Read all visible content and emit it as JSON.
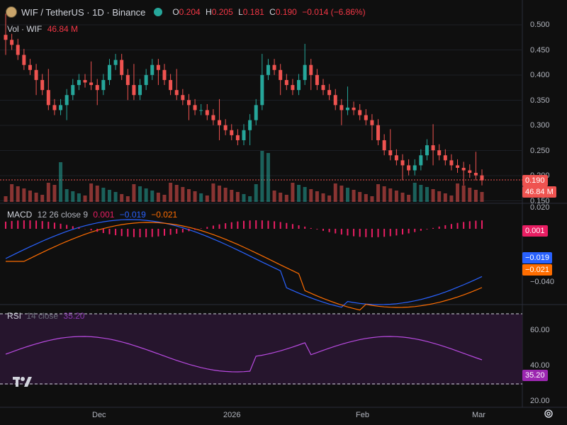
{
  "header": {
    "symbol": "WIF / TetherUS · 1D · Binance",
    "ohlc": [
      {
        "k": "O",
        "v": "0.204"
      },
      {
        "k": "H",
        "v": "0.205"
      },
      {
        "k": "L",
        "v": "0.181"
      },
      {
        "k": "C",
        "v": "0.190"
      }
    ],
    "change": "−0.014 (−6.86%)"
  },
  "volume_label": {
    "name": "Vol · WIF",
    "value": "46.84 M"
  },
  "macd_label": {
    "name": "MACD",
    "params": "12 26 close 9",
    "hist": "0.001",
    "macd": "−0.019",
    "signal": "−0.021"
  },
  "rsi_label": {
    "name": "RSI",
    "params": "14 close",
    "value": "35.20"
  },
  "price_axis": [
    "0.500",
    "0.450",
    "0.400",
    "0.350",
    "0.300",
    "0.250",
    "0.200",
    "0.150"
  ],
  "macd_axis": [
    "0.020",
    "−0.040"
  ],
  "rsi_axis": [
    "60.00",
    "40.00",
    "20.00"
  ],
  "time_axis": [
    "Dec",
    "2026",
    "Feb",
    "Mar"
  ],
  "tags": {
    "price": "0.190",
    "volume": "46.84 M",
    "hist": "0.001",
    "macd": "−0.019",
    "signal": "−0.021",
    "rsi": "35.20"
  },
  "colors": {
    "up": "#26a69a",
    "down": "#ef5350",
    "macd": "#2962ff",
    "signal": "#ff6d00",
    "hist": "#e91e63",
    "rsi": "#b84ae0",
    "bg": "#0f0f0f"
  },
  "chart_data": {
    "type": "candlestick",
    "close_series": [
      0.47,
      0.46,
      0.44,
      0.42,
      0.41,
      0.39,
      0.37,
      0.34,
      0.33,
      0.34,
      0.36,
      0.38,
      0.39,
      0.385,
      0.38,
      0.37,
      0.39,
      0.42,
      0.43,
      0.4,
      0.38,
      0.36,
      0.38,
      0.4,
      0.42,
      0.41,
      0.39,
      0.37,
      0.36,
      0.35,
      0.34,
      0.33,
      0.33,
      0.32,
      0.31,
      0.3,
      0.29,
      0.28,
      0.27,
      0.29,
      0.31,
      0.34,
      0.4,
      0.42,
      0.41,
      0.39,
      0.38,
      0.37,
      0.39,
      0.42,
      0.4,
      0.38,
      0.37,
      0.36,
      0.34,
      0.33,
      0.335,
      0.33,
      0.32,
      0.31,
      0.3,
      0.27,
      0.25,
      0.24,
      0.23,
      0.22,
      0.21,
      0.22,
      0.24,
      0.26,
      0.25,
      0.24,
      0.23,
      0.22,
      0.215,
      0.21,
      0.205,
      0.2,
      0.19
    ]
  }
}
